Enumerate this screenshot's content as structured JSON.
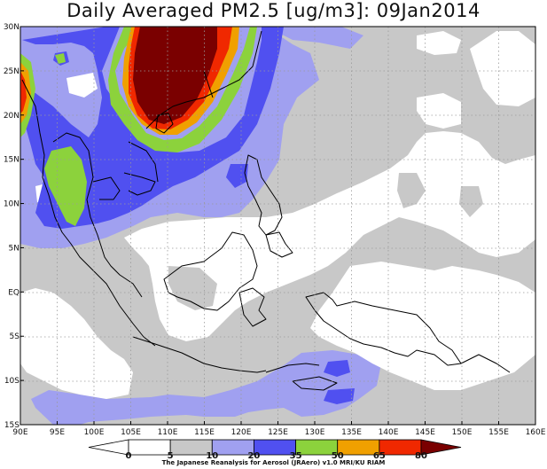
{
  "title": "Daily Averaged PM2.5 [ug/m3]: 09Jan2014",
  "credit": "The Japanese Reanalysis for Aerosol (JRAero) v1.0 MRI/KU RIAM",
  "map": {
    "lon_range": [
      90,
      160
    ],
    "lat_range": [
      -15,
      30
    ],
    "x_ticks": [
      "90E",
      "95E",
      "100E",
      "105E",
      "110E",
      "115E",
      "120E",
      "125E",
      "130E",
      "135E",
      "140E",
      "145E",
      "150E",
      "155E",
      "160E"
    ],
    "y_ticks": [
      "30N",
      "25N",
      "20N",
      "15N",
      "10N",
      "5N",
      "EQ",
      "5S",
      "10S",
      "15S"
    ]
  },
  "colorbar": {
    "labels": [
      "0",
      "5",
      "10",
      "20",
      "35",
      "50",
      "65",
      "80"
    ],
    "bins": [
      {
        "name": "below-0",
        "color": "#ffffff"
      },
      {
        "name": "0-5",
        "color": "#ffffff"
      },
      {
        "name": "5-10",
        "color": "#c8c8c8"
      },
      {
        "name": "10-20",
        "color": "#a0a0f0"
      },
      {
        "name": "20-35",
        "color": "#5050f0"
      },
      {
        "name": "35-50",
        "color": "#8cd23c"
      },
      {
        "name": "50-65",
        "color": "#f0a000"
      },
      {
        "name": "65-80",
        "color": "#f02800"
      },
      {
        "name": "above-80",
        "color": "#7a0000"
      }
    ]
  }
}
